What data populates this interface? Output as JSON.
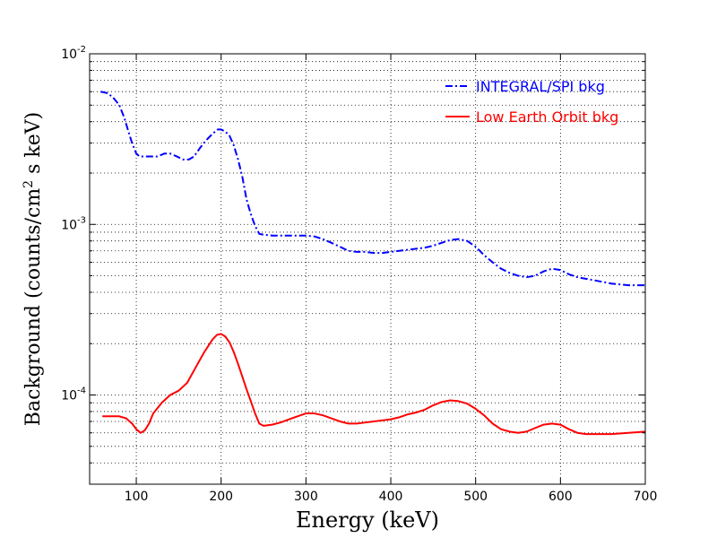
{
  "chart_data": {
    "type": "line",
    "title": "",
    "xlabel": "Energy (keV)",
    "ylabel": {
      "prefix": "Background  (counts/cm",
      "sup": "2",
      "suffix": " s keV)"
    },
    "xlim": [
      45,
      700
    ],
    "ylim": [
      3e-05,
      0.01
    ],
    "yscale": "log",
    "grid": true,
    "legend_position": "top-right",
    "x_ticks": [
      100,
      200,
      300,
      400,
      500,
      600,
      700
    ],
    "x_tick_labels": [
      "100",
      "200",
      "300",
      "400",
      "500",
      "600",
      "700"
    ],
    "y_ticks": [
      {
        "value": 0.01,
        "base": "10",
        "exp": "-2"
      },
      {
        "value": 0.001,
        "base": "10",
        "exp": "-3"
      },
      {
        "value": 0.0001,
        "base": "10",
        "exp": "-4"
      }
    ],
    "series": [
      {
        "name": "INTEGRAL/SPI bkg",
        "color": "#0000ff",
        "style": "dashdot",
        "x": [
          58,
          65,
          72,
          80,
          86,
          90,
          95,
          100,
          104,
          110,
          118,
          125,
          133,
          140,
          148,
          155,
          162,
          168,
          175,
          182,
          190,
          196,
          200,
          205,
          210,
          215,
          220,
          225,
          230,
          235,
          240,
          245,
          250,
          260,
          270,
          280,
          290,
          300,
          310,
          320,
          330,
          340,
          350,
          360,
          370,
          380,
          390,
          400,
          410,
          420,
          430,
          440,
          450,
          460,
          470,
          480,
          490,
          500,
          510,
          520,
          530,
          540,
          550,
          560,
          570,
          580,
          590,
          600,
          610,
          620,
          640,
          660,
          680,
          700
        ],
        "y": [
          0.006,
          0.0059,
          0.0056,
          0.005,
          0.0042,
          0.0036,
          0.003,
          0.0026,
          0.0025,
          0.0025,
          0.0025,
          0.0025,
          0.0026,
          0.0026,
          0.0025,
          0.0024,
          0.0024,
          0.0025,
          0.0028,
          0.0031,
          0.0034,
          0.0036,
          0.0036,
          0.0035,
          0.0033,
          0.0029,
          0.0024,
          0.0019,
          0.0014,
          0.00115,
          0.00098,
          0.00088,
          0.00087,
          0.00086,
          0.00086,
          0.00086,
          0.00086,
          0.00086,
          0.00085,
          0.00082,
          0.00078,
          0.00074,
          0.0007,
          0.00069,
          0.00069,
          0.00068,
          0.00068,
          0.00069,
          0.0007,
          0.00071,
          0.00072,
          0.00073,
          0.00075,
          0.00078,
          0.00081,
          0.00082,
          0.0008,
          0.00074,
          0.00066,
          0.0006,
          0.00055,
          0.00052,
          0.0005,
          0.00049,
          0.0005,
          0.00053,
          0.00055,
          0.00054,
          0.00051,
          0.00049,
          0.00047,
          0.00045,
          0.00044,
          0.00044
        ]
      },
      {
        "name": "Low Earth Orbit bkg",
        "color": "#ff0000",
        "style": "solid",
        "x": [
          60,
          70,
          80,
          88,
          95,
          100,
          105,
          110,
          115,
          120,
          130,
          140,
          150,
          160,
          170,
          180,
          190,
          195,
          200,
          205,
          210,
          215,
          220,
          225,
          230,
          235,
          240,
          245,
          250,
          260,
          270,
          280,
          290,
          300,
          310,
          320,
          330,
          340,
          350,
          360,
          370,
          380,
          390,
          400,
          410,
          420,
          430,
          440,
          450,
          460,
          470,
          480,
          490,
          500,
          510,
          520,
          530,
          540,
          550,
          560,
          570,
          580,
          590,
          600,
          610,
          620,
          630,
          640,
          660,
          680,
          700
        ],
        "y": [
          7.5e-05,
          7.5e-05,
          7.5e-05,
          7.3e-05,
          6.8e-05,
          6.3e-05,
          6e-05,
          6.2e-05,
          6.8e-05,
          7.8e-05,
          9e-05,
          0.0001,
          0.000106,
          0.000118,
          0.000145,
          0.000178,
          0.000212,
          0.000225,
          0.000228,
          0.00022,
          0.000203,
          0.000178,
          0.000152,
          0.000128,
          0.000108,
          9.2e-05,
          7.8e-05,
          6.8e-05,
          6.6e-05,
          6.7e-05,
          6.9e-05,
          7.2e-05,
          7.5e-05,
          7.8e-05,
          7.8e-05,
          7.6e-05,
          7.3e-05,
          7e-05,
          6.8e-05,
          6.8e-05,
          6.9e-05,
          7e-05,
          7.1e-05,
          7.2e-05,
          7.4e-05,
          7.7e-05,
          7.9e-05,
          8.2e-05,
          8.7e-05,
          9.1e-05,
          9.3e-05,
          9.2e-05,
          8.9e-05,
          8.3e-05,
          7.6e-05,
          6.8e-05,
          6.3e-05,
          6.1e-05,
          6e-05,
          6.1e-05,
          6.4e-05,
          6.7e-05,
          6.8e-05,
          6.7e-05,
          6.3e-05,
          6e-05,
          5.9e-05,
          5.9e-05,
          5.9e-05,
          6e-05,
          6.1e-05
        ]
      }
    ]
  }
}
